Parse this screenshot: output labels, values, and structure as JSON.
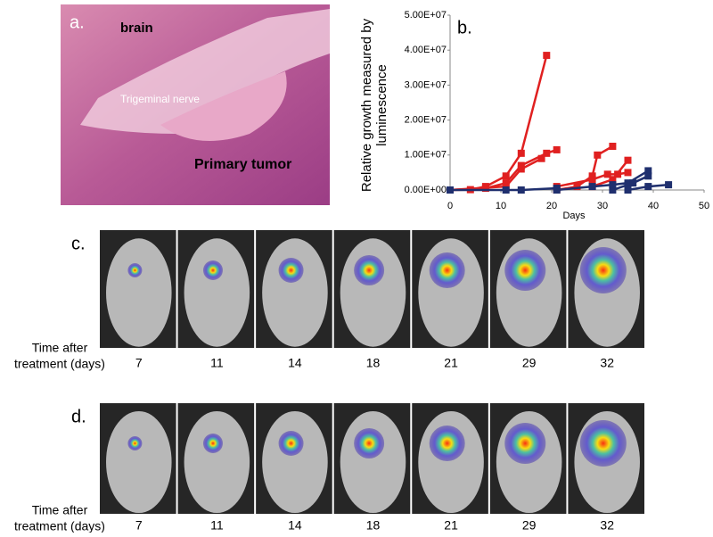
{
  "panel_a": {
    "label": "a.",
    "texts": [
      "brain",
      "Trigeminal nerve",
      "Primary tumor"
    ]
  },
  "chart_data": {
    "type": "line",
    "annotation": "b.",
    "ylabel": [
      "Relative growth measured by",
      "luminescence"
    ],
    "xlabel": "Days",
    "xlim": [
      0,
      50
    ],
    "xticks": [
      0,
      10,
      20,
      30,
      40,
      50
    ],
    "ylim": [
      0,
      50000000
    ],
    "yticks": [
      {
        "value": 0,
        "label": "0.00E+00"
      },
      {
        "value": 10000000,
        "label": "1.00E+07"
      },
      {
        "value": 20000000,
        "label": "2.00E+07"
      },
      {
        "value": 30000000,
        "label": "3.00E+07"
      },
      {
        "value": 40000000,
        "label": "4.00E+07"
      },
      {
        "value": 50000000,
        "label": "5.00E+07"
      }
    ],
    "series": [
      {
        "color": "#e02020",
        "x": [
          0,
          4,
          7,
          11,
          14,
          19
        ],
        "values": [
          0,
          100000,
          1000000,
          4000000,
          10500000,
          38500000
        ]
      },
      {
        "color": "#e02020",
        "x": [
          0,
          7,
          11,
          14,
          19,
          21
        ],
        "values": [
          0,
          500000,
          2000000,
          7000000,
          10500000,
          11500000
        ]
      },
      {
        "color": "#e02020",
        "x": [
          0,
          11,
          14,
          18
        ],
        "values": [
          0,
          1000000,
          6000000,
          9000000
        ]
      },
      {
        "color": "#e02020",
        "x": [
          21,
          25,
          28,
          29,
          32
        ],
        "values": [
          0,
          1000000,
          4000000,
          10000000,
          12500000
        ]
      },
      {
        "color": "#e02020",
        "x": [
          21,
          28,
          31,
          33,
          35
        ],
        "values": [
          1000000,
          3000000,
          4500000,
          4500000,
          5000000
        ]
      },
      {
        "color": "#e02020",
        "x": [
          28,
          32,
          35
        ],
        "values": [
          1000000,
          3000000,
          8500000
        ]
      },
      {
        "color": "#1f2f6e",
        "x": [
          21,
          28,
          32,
          35,
          39
        ],
        "values": [
          0,
          1000000,
          1500000,
          2000000,
          5500000
        ]
      },
      {
        "color": "#1f2f6e",
        "x": [
          32,
          36,
          39
        ],
        "values": [
          0,
          2000000,
          4000000
        ]
      },
      {
        "color": "#1f2f6e",
        "x": [
          35,
          39,
          43
        ],
        "values": [
          0,
          1000000,
          1500000
        ]
      },
      {
        "color": "#1f2f6e",
        "x": [
          0,
          11,
          14,
          21
        ],
        "values": [
          0,
          0,
          0,
          500000
        ]
      }
    ]
  },
  "panel_c": {
    "label": "c.",
    "time_label": [
      "Time after",
      "treatment (days)"
    ],
    "days": [
      7,
      11,
      14,
      18,
      21,
      29,
      32
    ]
  },
  "panel_d": {
    "label": "d.",
    "time_label": [
      "Time after",
      "treatment (days)"
    ],
    "days": [
      7,
      11,
      14,
      18,
      21,
      29,
      32
    ]
  }
}
